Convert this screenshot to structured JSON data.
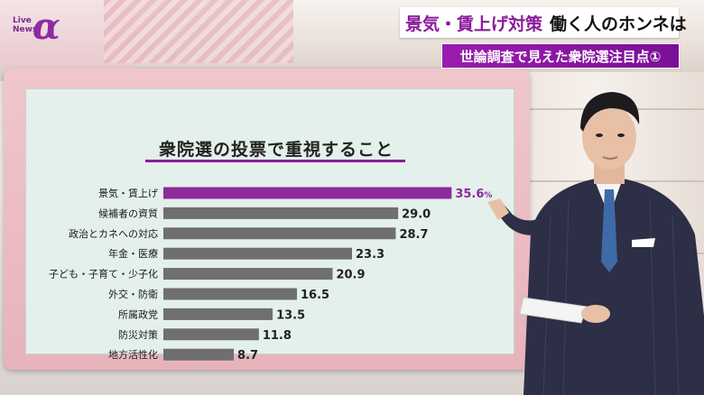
{
  "logo": {
    "live": "Live",
    "news": "News",
    "alpha": "α"
  },
  "headline": {
    "part1": "景気・賃上げ対策",
    "part2": "働く人のホンネは"
  },
  "subhead": "世論調査で見えた衆院選注目点①",
  "colors": {
    "accent": "#8a1a9a",
    "highlight_bar": "#8c2a9a",
    "bar": "#6f6f6f",
    "screen_bg": "#e4f0ec"
  },
  "chart_data": {
    "type": "bar",
    "orientation": "horizontal",
    "title": "衆院選の投票で重視すること",
    "categories": [
      "景気・賃上げ",
      "候補者の資質",
      "政治とカネへの対応",
      "年金・医療",
      "子ども・子育て・少子化",
      "外交・防衛",
      "所属政党",
      "防災対策",
      "地方活性化"
    ],
    "values": [
      35.6,
      29.0,
      28.7,
      23.3,
      20.9,
      16.5,
      13.5,
      11.8,
      8.7
    ],
    "value_labels": [
      "35.6",
      "29.0",
      "28.7",
      "23.3",
      "20.9",
      "16.5",
      "13.5",
      "11.8",
      "8.7"
    ],
    "unit": "%",
    "highlight_index": 0,
    "xlim": [
      0,
      40
    ]
  }
}
